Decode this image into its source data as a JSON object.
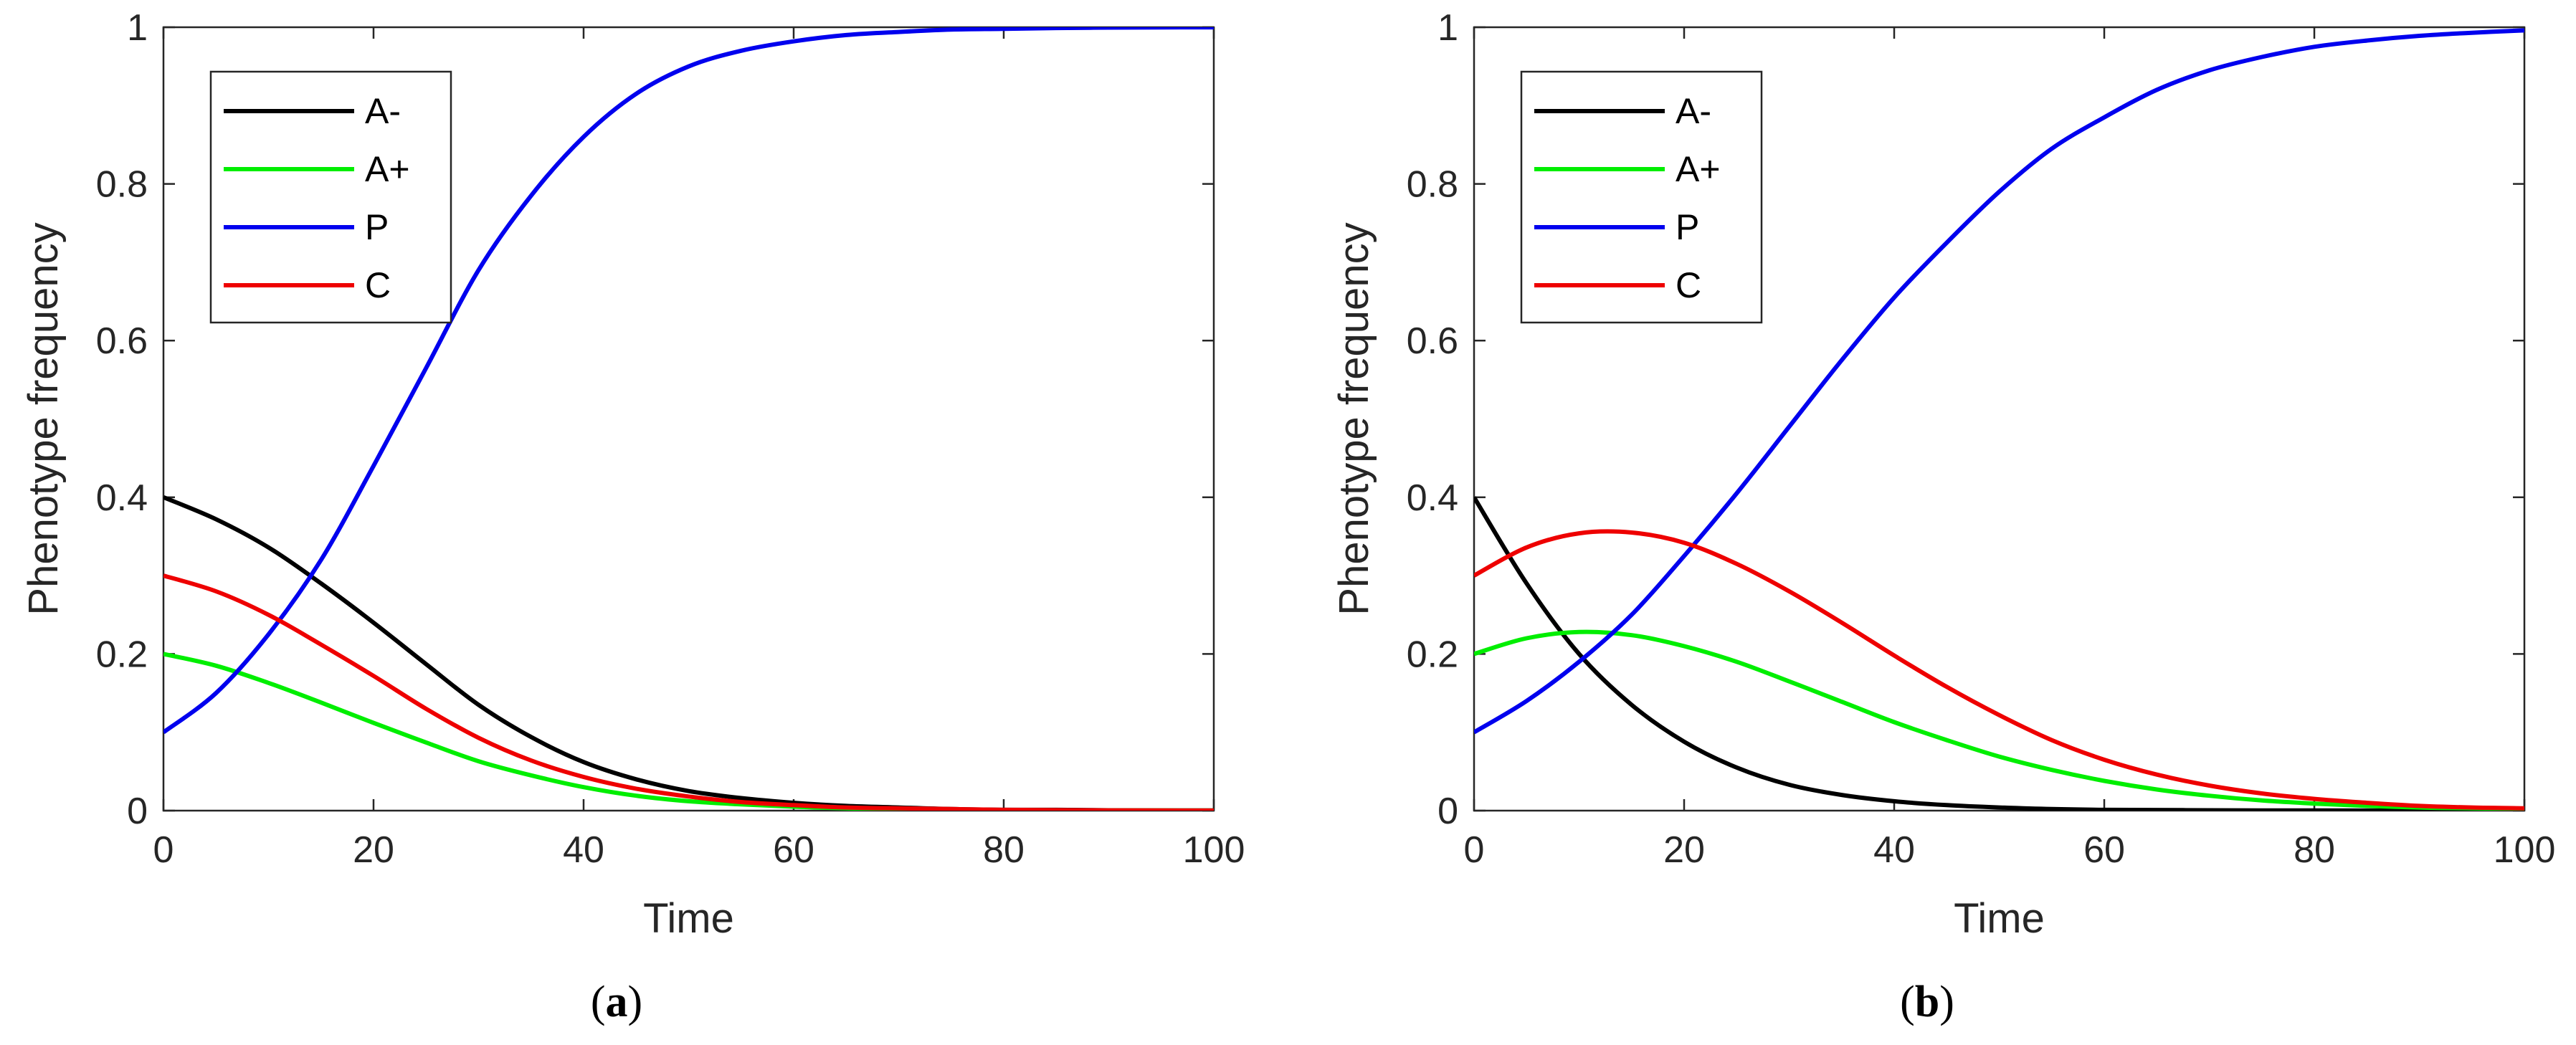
{
  "chart_data": [
    {
      "type": "line",
      "panel": "a",
      "caption_open": "(",
      "caption_letter": "a",
      "caption_close": ")",
      "xlabel": "Time",
      "ylabel": "Phenotype frequency",
      "xlim": [
        0,
        100
      ],
      "ylim": [
        0,
        1
      ],
      "xticks": [
        0,
        20,
        40,
        60,
        80,
        100
      ],
      "yticks": [
        0,
        0.2,
        0.4,
        0.6,
        0.8,
        1
      ],
      "ytick_labels": [
        "0",
        "0.2",
        "0.4",
        "0.6",
        "0.8",
        "1"
      ],
      "legend_position": "top-left",
      "x": [
        0,
        5,
        10,
        15,
        20,
        25,
        30,
        35,
        40,
        45,
        50,
        55,
        60,
        65,
        70,
        75,
        80,
        85,
        90,
        95,
        100
      ],
      "series": [
        {
          "name": "A-",
          "color": "#000000",
          "values": [
            0.4,
            0.372,
            0.336,
            0.29,
            0.24,
            0.187,
            0.135,
            0.094,
            0.062,
            0.04,
            0.025,
            0.016,
            0.01,
            0.006,
            0.004,
            0.002,
            0.001,
            0.001,
            0.0005,
            0.0003,
            0.0002
          ]
        },
        {
          "name": "A+",
          "color": "#00ee00",
          "values": [
            0.2,
            0.185,
            0.163,
            0.138,
            0.112,
            0.087,
            0.063,
            0.045,
            0.03,
            0.019,
            0.012,
            0.008,
            0.005,
            0.003,
            0.002,
            0.001,
            0.0008,
            0.0005,
            0.0003,
            0.0002,
            0.0001
          ]
        },
        {
          "name": "P",
          "color": "#0000ee",
          "values": [
            0.1,
            0.15,
            0.225,
            0.32,
            0.44,
            0.565,
            0.69,
            0.785,
            0.86,
            0.915,
            0.95,
            0.97,
            0.982,
            0.99,
            0.994,
            0.997,
            0.998,
            0.999,
            0.9995,
            0.9998,
            0.9999
          ]
        },
        {
          "name": "C",
          "color": "#ee0000",
          "values": [
            0.3,
            0.28,
            0.25,
            0.212,
            0.172,
            0.13,
            0.093,
            0.064,
            0.043,
            0.028,
            0.018,
            0.011,
            0.007,
            0.004,
            0.003,
            0.002,
            0.001,
            0.0006,
            0.0004,
            0.0002,
            0.0001
          ]
        }
      ]
    },
    {
      "type": "line",
      "panel": "b",
      "caption_open": "(",
      "caption_letter": "b",
      "caption_close": ")",
      "xlabel": "Time",
      "ylabel": "Phenotype frequency",
      "xlim": [
        0,
        100
      ],
      "ylim": [
        0,
        1
      ],
      "xticks": [
        0,
        20,
        40,
        60,
        80,
        100
      ],
      "yticks": [
        0,
        0.2,
        0.4,
        0.6,
        0.8,
        1
      ],
      "ytick_labels": [
        "0",
        "0.2",
        "0.4",
        "0.6",
        "0.8",
        "1"
      ],
      "legend_position": "top-left",
      "x": [
        0,
        5,
        10,
        15,
        20,
        25,
        30,
        35,
        40,
        45,
        50,
        55,
        60,
        65,
        70,
        75,
        80,
        85,
        90,
        95,
        100
      ],
      "series": [
        {
          "name": "A-",
          "color": "#000000",
          "values": [
            0.4,
            0.29,
            0.2,
            0.135,
            0.088,
            0.055,
            0.033,
            0.02,
            0.012,
            0.007,
            0.004,
            0.002,
            0.001,
            0.0008,
            0.0005,
            0.0003,
            0.0002,
            0.0001,
            0.0001,
            0.0001,
            0.0001
          ]
        },
        {
          "name": "A+",
          "color": "#00ee00",
          "values": [
            0.2,
            0.22,
            0.228,
            0.224,
            0.21,
            0.19,
            0.165,
            0.139,
            0.113,
            0.09,
            0.069,
            0.052,
            0.038,
            0.027,
            0.019,
            0.013,
            0.009,
            0.006,
            0.004,
            0.003,
            0.002
          ]
        },
        {
          "name": "P",
          "color": "#0000ee",
          "values": [
            0.1,
            0.14,
            0.19,
            0.25,
            0.325,
            0.405,
            0.49,
            0.575,
            0.655,
            0.725,
            0.79,
            0.845,
            0.885,
            0.92,
            0.945,
            0.962,
            0.975,
            0.983,
            0.989,
            0.993,
            0.996
          ]
        },
        {
          "name": "C",
          "color": "#ee0000",
          "values": [
            0.3,
            0.336,
            0.354,
            0.355,
            0.342,
            0.315,
            0.28,
            0.24,
            0.198,
            0.158,
            0.122,
            0.09,
            0.065,
            0.046,
            0.032,
            0.022,
            0.015,
            0.01,
            0.006,
            0.004,
            0.003
          ]
        }
      ]
    }
  ]
}
